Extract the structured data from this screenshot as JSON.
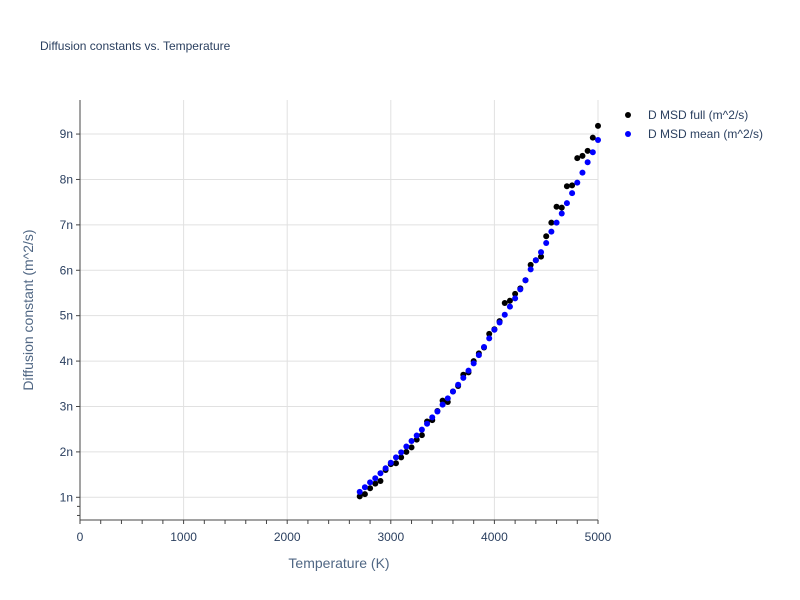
{
  "chart_data": {
    "type": "scatter",
    "title": "Diffusion constants vs. Temperature",
    "xlabel": "Temperature (K)",
    "ylabel": "Diffusion constant (m^2/s)",
    "xlim": [
      0,
      5000
    ],
    "ylim": [
      5e-10,
      9.75e-09
    ],
    "x_ticks": [
      0,
      1000,
      2000,
      3000,
      4000,
      5000
    ],
    "x_tick_labels": [
      "0",
      "1000",
      "2000",
      "3000",
      "4000",
      "5000"
    ],
    "y_ticks": [
      1e-09,
      2e-09,
      3e-09,
      4e-09,
      5e-09,
      6e-09,
      7e-09,
      8e-09,
      9e-09
    ],
    "y_tick_labels": [
      "1n",
      "2n",
      "3n",
      "4n",
      "5n",
      "6n",
      "7n",
      "8n",
      "9n"
    ],
    "grid": true,
    "legend_position": "top-right",
    "series": [
      {
        "name": "D MSD full (m^2/s)",
        "color": "#000000",
        "x": [
          2700,
          2750,
          2800,
          2850,
          2900,
          2950,
          3000,
          3050,
          3100,
          3150,
          3200,
          3250,
          3300,
          3350,
          3400,
          3450,
          3500,
          3550,
          3600,
          3650,
          3700,
          3750,
          3800,
          3850,
          3900,
          3950,
          4000,
          4050,
          4100,
          4150,
          4200,
          4250,
          4300,
          4350,
          4400,
          4450,
          4500,
          4550,
          4600,
          4650,
          4700,
          4750,
          4800,
          4850,
          4900,
          4950,
          5000
        ],
        "y": [
          1.02e-09,
          1.07e-09,
          1.2e-09,
          1.3e-09,
          1.36e-09,
          1.6e-09,
          1.73e-09,
          1.75e-09,
          1.88e-09,
          2e-09,
          2.1e-09,
          2.27e-09,
          2.37e-09,
          2.67e-09,
          2.7e-09,
          2.9e-09,
          3.13e-09,
          3.1e-09,
          3.33e-09,
          3.45e-09,
          3.7e-09,
          3.75e-09,
          4e-09,
          4.17e-09,
          4.3e-09,
          4.6e-09,
          4.7e-09,
          4.88e-09,
          5.28e-09,
          5.33e-09,
          5.48e-09,
          5.6e-09,
          5.78e-09,
          6.12e-09,
          6.22e-09,
          6.3e-09,
          6.75e-09,
          7.05e-09,
          7.4e-09,
          7.38e-09,
          7.85e-09,
          7.87e-09,
          8.47e-09,
          8.52e-09,
          8.63e-09,
          8.92e-09,
          9.18e-09
        ]
      },
      {
        "name": "D MSD mean (m^2/s)",
        "color": "#0000ff",
        "x": [
          2700,
          2750,
          2800,
          2850,
          2900,
          2950,
          3000,
          3050,
          3100,
          3150,
          3200,
          3250,
          3300,
          3350,
          3400,
          3450,
          3500,
          3550,
          3600,
          3650,
          3700,
          3750,
          3800,
          3850,
          3900,
          3950,
          4000,
          4050,
          4100,
          4150,
          4200,
          4250,
          4300,
          4350,
          4400,
          4450,
          4500,
          4550,
          4600,
          4650,
          4700,
          4750,
          4800,
          4850,
          4900,
          4950,
          5000
        ],
        "y": [
          1.12e-09,
          1.22e-09,
          1.33e-09,
          1.42e-09,
          1.53e-09,
          1.64e-09,
          1.76e-09,
          1.88e-09,
          1.99e-09,
          2.12e-09,
          2.24e-09,
          2.36e-09,
          2.49e-09,
          2.62e-09,
          2.76e-09,
          2.89e-09,
          3.04e-09,
          3.18e-09,
          3.33e-09,
          3.48e-09,
          3.63e-09,
          3.79e-09,
          3.95e-09,
          4.13e-09,
          4.31e-09,
          4.5e-09,
          4.69e-09,
          4.85e-09,
          5.02e-09,
          5.2e-09,
          5.38e-09,
          5.58e-09,
          5.78e-09,
          6.02e-09,
          6.22e-09,
          6.4e-09,
          6.6e-09,
          6.85e-09,
          7.05e-09,
          7.25e-09,
          7.48e-09,
          7.7e-09,
          7.93e-09,
          8.15e-09,
          8.38e-09,
          8.6e-09,
          8.87e-09
        ]
      }
    ]
  }
}
